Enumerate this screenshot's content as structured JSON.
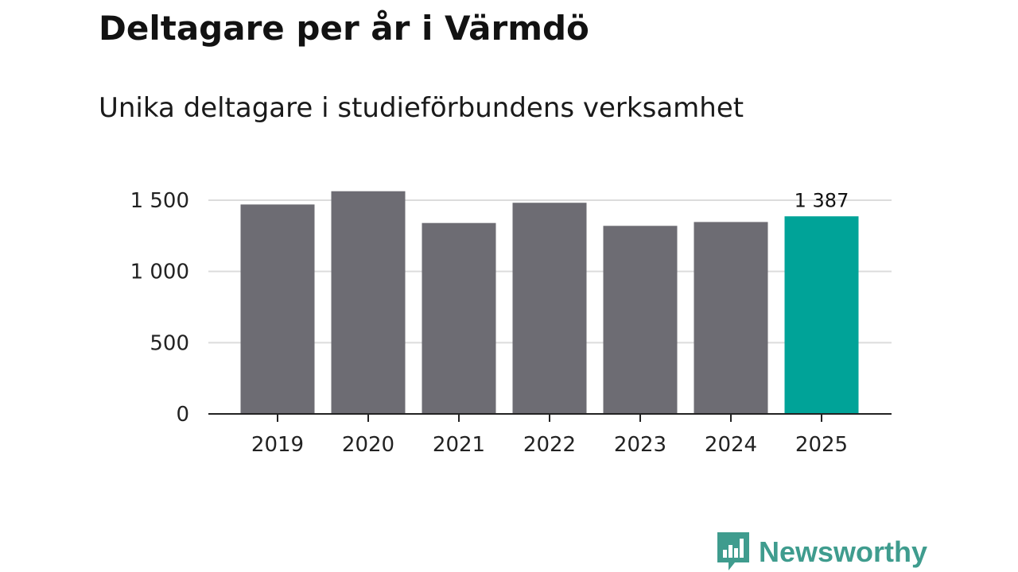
{
  "header": {
    "title": "Deltagare per år i Värmdö",
    "subtitle": "Unika deltagare i studieförbundens verksamhet"
  },
  "chart_data": {
    "type": "bar",
    "title": "Deltagare per år i Värmdö",
    "subtitle": "Unika deltagare i studieförbundens verksamhet",
    "xlabel": "",
    "ylabel": "",
    "categories": [
      "2019",
      "2020",
      "2021",
      "2022",
      "2023",
      "2024",
      "2025"
    ],
    "values": [
      1470,
      1563,
      1340,
      1482,
      1320,
      1347,
      1387
    ],
    "ylim": [
      0,
      1500
    ],
    "yticks": [
      0,
      500,
      1000,
      1500
    ],
    "ytick_labels": [
      "0",
      "500",
      "1 000",
      "1 500"
    ],
    "grid": true,
    "highlight": {
      "category": "2025",
      "label": "1 387",
      "color": "#00a398"
    },
    "bar_color": "#6d6c73"
  },
  "brand": {
    "name": "Newsworthy",
    "color": "#3f9c8e",
    "icon": "bar-chart-speech-bubble-icon"
  }
}
